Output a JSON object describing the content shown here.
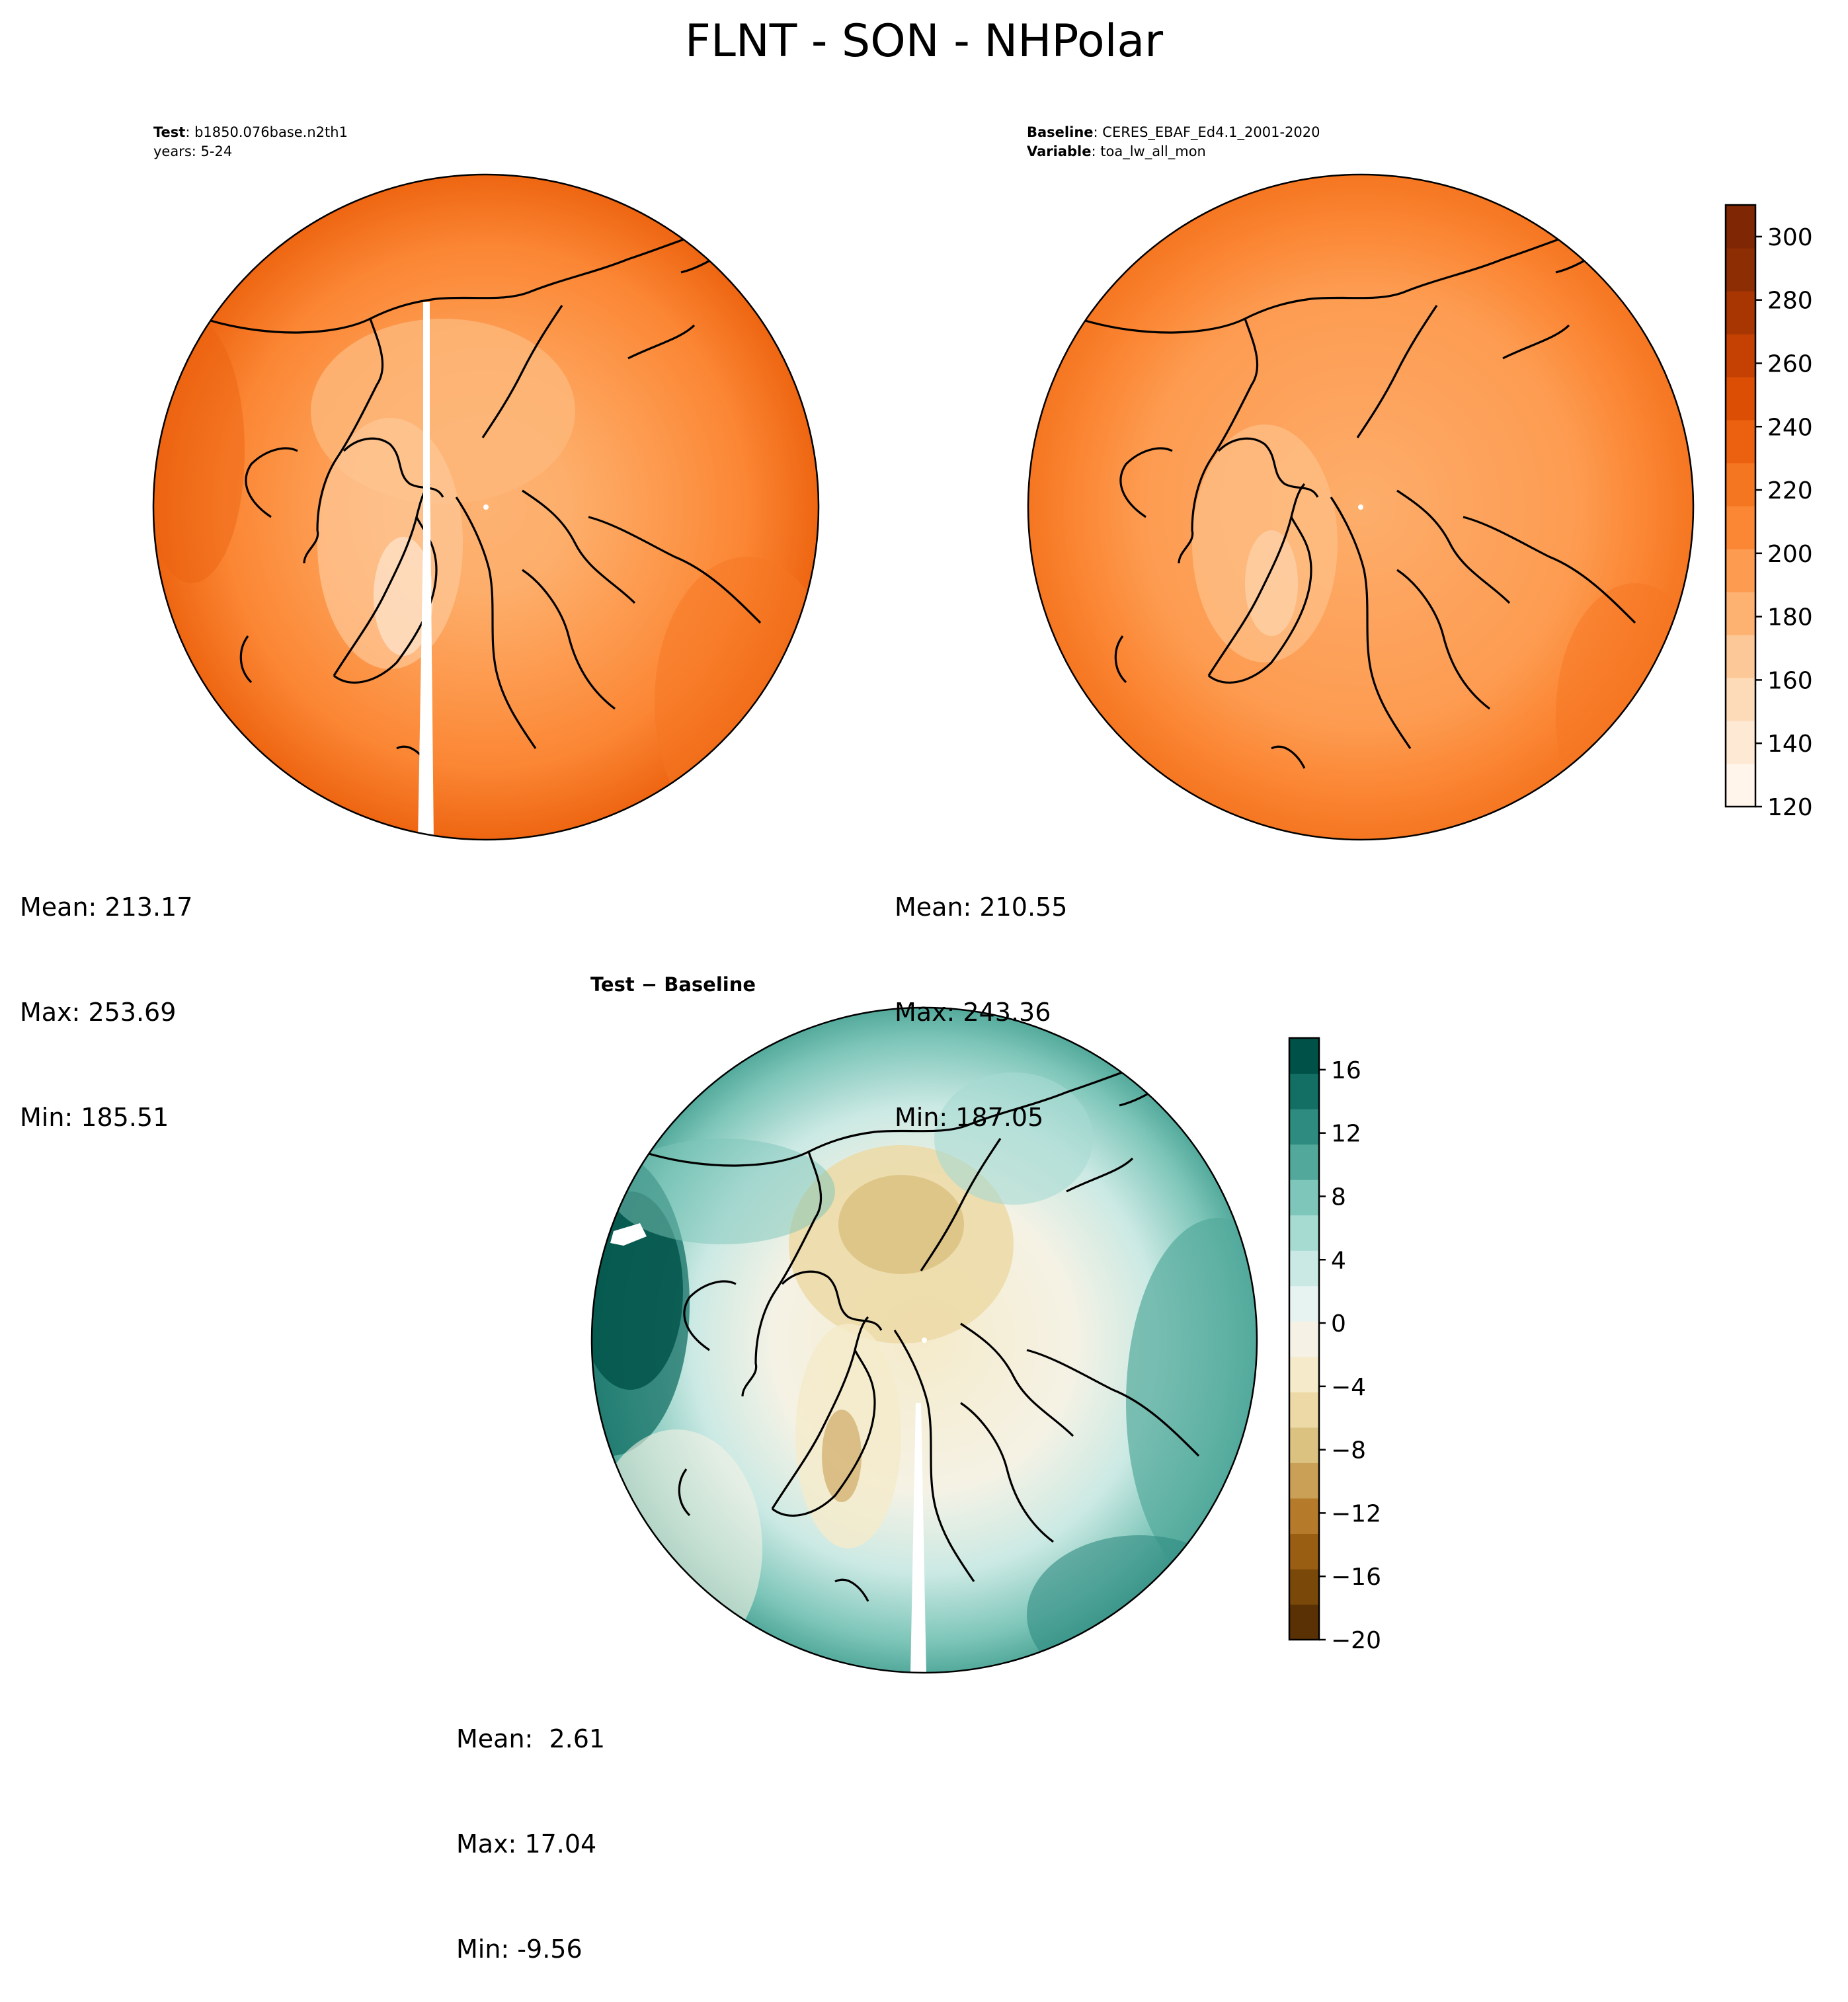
{
  "title": "FLNT - SON - NHPolar",
  "panels": {
    "test": {
      "label_key": "Test",
      "label_value": "b1850.076base.n2th1",
      "line2": "years: 5-24",
      "stats": {
        "mean": "Mean: 213.17",
        "max": "Max: 253.69",
        "min": "Min: 185.51"
      }
    },
    "baseline": {
      "label_key": "Baseline",
      "label_value": "CERES_EBAF_Ed4.1_2001-2020",
      "var_key": "Variable",
      "var_value": "toa_lw_all_mon",
      "stats": {
        "mean": "Mean: 210.55",
        "max": "Max: 243.36",
        "min": "Min: 187.05"
      }
    },
    "difference": {
      "title": "Test − Baseline",
      "stats": {
        "mean": "Mean:  2.61",
        "max": "Max: 17.04",
        "min": "Min: -9.56"
      }
    }
  },
  "colorbars": {
    "main": {
      "colormap": "Oranges",
      "range": [
        120,
        310
      ],
      "ticks": [
        "120",
        "140",
        "160",
        "180",
        "200",
        "220",
        "240",
        "260",
        "280",
        "300"
      ],
      "tick_values": [
        120,
        140,
        160,
        180,
        200,
        220,
        240,
        260,
        280,
        300
      ],
      "colors": [
        "#fff5eb",
        "#fee9d4",
        "#fddbb8",
        "#fdc897",
        "#fdb272",
        "#fd9c51",
        "#fb8634",
        "#f57621",
        "#eb6110",
        "#dd4e05",
        "#c54103",
        "#a73603",
        "#8c2d04",
        "#7f2704"
      ]
    },
    "diff": {
      "colormap": "BrBG",
      "range": [
        -20,
        18
      ],
      "ticks": [
        "−20",
        "−16",
        "−12",
        "−8",
        "−4",
        "0",
        "4",
        "8",
        "12",
        "16"
      ],
      "tick_values": [
        -20,
        -16,
        -12,
        -8,
        -4,
        0,
        4,
        8,
        12,
        16
      ],
      "colors": [
        "#5a3105",
        "#7a4808",
        "#995e12",
        "#b57a2a",
        "#c9a055",
        "#dbc281",
        "#ecd9a6",
        "#f5ebcb",
        "#f5f2e5",
        "#e7f3f1",
        "#cbe9e4",
        "#a6dbd2",
        "#7ec6b9",
        "#52a99b",
        "#2e8b80",
        "#136f64",
        "#005147"
      ]
    }
  }
}
